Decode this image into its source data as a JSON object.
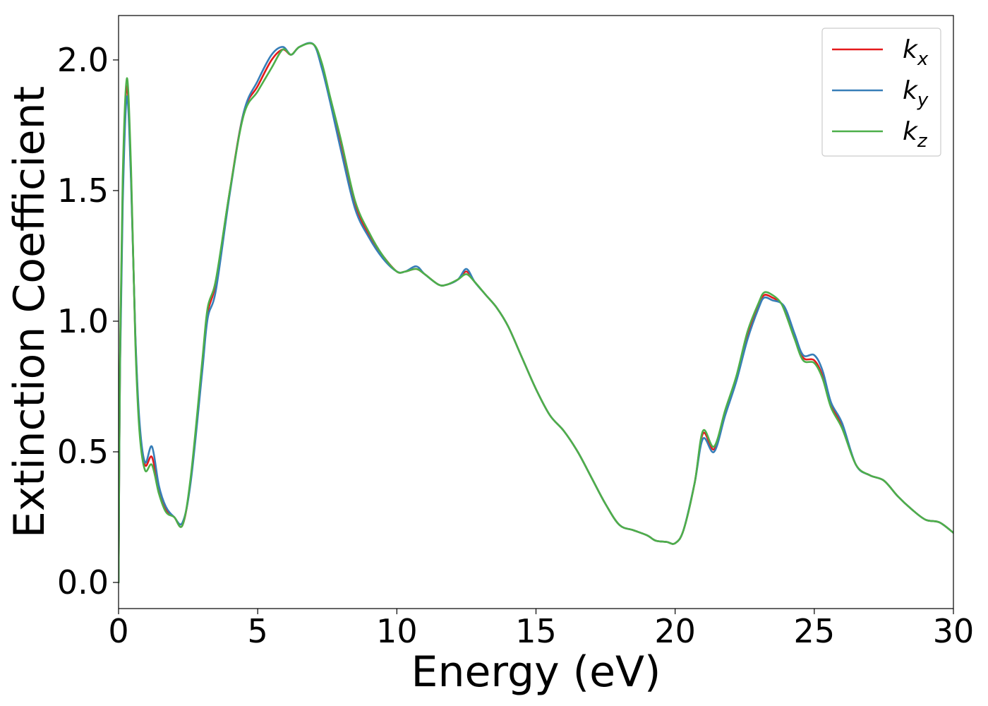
{
  "chart_data": {
    "type": "line",
    "title": "",
    "xlabel": "Energy (eV)",
    "ylabel": "Extinction Coefficient",
    "xlim": [
      0,
      30
    ],
    "ylim": [
      -0.1,
      2.17
    ],
    "xticks": [
      0,
      5,
      10,
      15,
      20,
      25,
      30
    ],
    "yticks": [
      0.0,
      0.5,
      1.0,
      1.5,
      2.0
    ],
    "xtick_labels": [
      "0",
      "5",
      "10",
      "15",
      "20",
      "25",
      "30"
    ],
    "ytick_labels": [
      "0.0",
      "0.5",
      "1.0",
      "1.5",
      "2.0"
    ],
    "grid": false,
    "legend_position": "top-right",
    "series": [
      {
        "name": "k_x",
        "label_main": "k",
        "label_sub": "x",
        "color": "#e41a1c",
        "x": [
          0,
          0.05,
          0.15,
          0.3,
          0.45,
          0.6,
          0.75,
          0.95,
          1.2,
          1.45,
          1.7,
          2.0,
          2.3,
          2.6,
          3.0,
          3.2,
          3.5,
          4.0,
          4.5,
          5.0,
          5.5,
          5.9,
          6.2,
          6.5,
          7.0,
          7.3,
          7.6,
          8.0,
          8.5,
          9.0,
          9.5,
          10.0,
          10.3,
          10.7,
          11.0,
          11.5,
          11.8,
          12.2,
          12.5,
          12.8,
          13.2,
          13.6,
          14.0,
          14.5,
          15.0,
          15.5,
          16.0,
          16.5,
          17.0,
          17.5,
          18.0,
          18.5,
          19.0,
          19.3,
          19.7,
          20.0,
          20.3,
          20.7,
          21.0,
          21.4,
          21.8,
          22.2,
          22.6,
          23.0,
          23.2,
          23.5,
          23.8,
          24.0,
          24.3,
          24.6,
          25.0,
          25.3,
          25.6,
          26.0,
          26.5,
          27.0,
          27.5,
          28.0,
          28.5,
          29.0,
          29.5,
          30.0
        ],
        "values": [
          0.0,
          0.8,
          1.5,
          1.9,
          1.55,
          0.95,
          0.6,
          0.45,
          0.48,
          0.35,
          0.28,
          0.25,
          0.22,
          0.4,
          0.82,
          1.03,
          1.15,
          1.5,
          1.8,
          1.9,
          2.0,
          2.04,
          2.02,
          2.05,
          2.06,
          1.98,
          1.85,
          1.68,
          1.45,
          1.33,
          1.25,
          1.19,
          1.19,
          1.2,
          1.18,
          1.14,
          1.14,
          1.16,
          1.19,
          1.15,
          1.1,
          1.05,
          0.98,
          0.86,
          0.74,
          0.64,
          0.58,
          0.5,
          0.4,
          0.3,
          0.22,
          0.2,
          0.18,
          0.16,
          0.155,
          0.15,
          0.2,
          0.38,
          0.57,
          0.51,
          0.65,
          0.78,
          0.95,
          1.06,
          1.1,
          1.09,
          1.07,
          1.03,
          0.94,
          0.86,
          0.85,
          0.79,
          0.68,
          0.6,
          0.45,
          0.41,
          0.39,
          0.33,
          0.28,
          0.24,
          0.23,
          0.19
        ]
      },
      {
        "name": "k_y",
        "label_main": "k",
        "label_sub": "y",
        "color": "#377eb8",
        "x": [
          0,
          0.05,
          0.15,
          0.3,
          0.45,
          0.6,
          0.75,
          0.95,
          1.2,
          1.45,
          1.7,
          2.0,
          2.3,
          2.6,
          3.0,
          3.2,
          3.5,
          4.0,
          4.5,
          5.0,
          5.5,
          5.9,
          6.2,
          6.5,
          7.0,
          7.3,
          7.6,
          8.0,
          8.5,
          9.0,
          9.5,
          10.0,
          10.3,
          10.7,
          11.0,
          11.5,
          11.8,
          12.2,
          12.5,
          12.8,
          13.2,
          13.6,
          14.0,
          14.5,
          15.0,
          15.5,
          16.0,
          16.5,
          17.0,
          17.5,
          18.0,
          18.5,
          19.0,
          19.3,
          19.7,
          20.0,
          20.3,
          20.7,
          21.0,
          21.4,
          21.8,
          22.2,
          22.6,
          23.0,
          23.2,
          23.5,
          23.8,
          24.0,
          24.3,
          24.6,
          25.0,
          25.3,
          25.6,
          26.0,
          26.5,
          27.0,
          27.5,
          28.0,
          28.5,
          29.0,
          29.5,
          30.0
        ],
        "values": [
          0.0,
          0.78,
          1.45,
          1.86,
          1.53,
          0.96,
          0.62,
          0.46,
          0.52,
          0.37,
          0.29,
          0.25,
          0.23,
          0.39,
          0.8,
          1.01,
          1.12,
          1.49,
          1.8,
          1.92,
          2.02,
          2.05,
          2.02,
          2.05,
          2.06,
          1.97,
          1.84,
          1.65,
          1.43,
          1.32,
          1.24,
          1.19,
          1.19,
          1.21,
          1.18,
          1.14,
          1.14,
          1.16,
          1.2,
          1.15,
          1.1,
          1.05,
          0.98,
          0.86,
          0.74,
          0.64,
          0.58,
          0.5,
          0.4,
          0.3,
          0.22,
          0.2,
          0.18,
          0.16,
          0.155,
          0.15,
          0.2,
          0.38,
          0.55,
          0.5,
          0.64,
          0.77,
          0.93,
          1.05,
          1.09,
          1.08,
          1.07,
          1.04,
          0.95,
          0.87,
          0.87,
          0.81,
          0.69,
          0.61,
          0.45,
          0.41,
          0.39,
          0.33,
          0.28,
          0.24,
          0.23,
          0.19
        ]
      },
      {
        "name": "k_z",
        "label_main": "k",
        "label_sub": "z",
        "color": "#4daf4a",
        "x": [
          0,
          0.05,
          0.15,
          0.3,
          0.45,
          0.6,
          0.75,
          0.95,
          1.2,
          1.45,
          1.7,
          2.0,
          2.3,
          2.6,
          3.0,
          3.2,
          3.5,
          4.0,
          4.5,
          5.0,
          5.5,
          5.9,
          6.2,
          6.5,
          7.0,
          7.3,
          7.6,
          8.0,
          8.5,
          9.0,
          9.5,
          10.0,
          10.3,
          10.7,
          11.0,
          11.5,
          11.8,
          12.2,
          12.5,
          12.8,
          13.2,
          13.6,
          14.0,
          14.5,
          15.0,
          15.5,
          16.0,
          16.5,
          17.0,
          17.5,
          18.0,
          18.5,
          19.0,
          19.3,
          19.7,
          20.0,
          20.3,
          20.7,
          21.0,
          21.4,
          21.8,
          22.2,
          22.6,
          23.0,
          23.2,
          23.5,
          23.8,
          24.0,
          24.3,
          24.6,
          25.0,
          25.3,
          25.6,
          26.0,
          26.5,
          27.0,
          27.5,
          28.0,
          28.5,
          29.0,
          29.5,
          30.0
        ],
        "values": [
          0.0,
          0.82,
          1.55,
          1.93,
          1.58,
          0.93,
          0.58,
          0.43,
          0.45,
          0.34,
          0.27,
          0.25,
          0.22,
          0.41,
          0.84,
          1.05,
          1.16,
          1.5,
          1.79,
          1.88,
          1.97,
          2.04,
          2.02,
          2.05,
          2.06,
          1.99,
          1.86,
          1.69,
          1.46,
          1.34,
          1.25,
          1.19,
          1.19,
          1.2,
          1.18,
          1.14,
          1.14,
          1.16,
          1.18,
          1.15,
          1.1,
          1.05,
          0.98,
          0.86,
          0.74,
          0.64,
          0.58,
          0.5,
          0.4,
          0.3,
          0.22,
          0.2,
          0.18,
          0.16,
          0.155,
          0.15,
          0.2,
          0.38,
          0.58,
          0.52,
          0.66,
          0.79,
          0.96,
          1.07,
          1.11,
          1.1,
          1.07,
          1.02,
          0.93,
          0.85,
          0.84,
          0.78,
          0.67,
          0.59,
          0.45,
          0.41,
          0.39,
          0.33,
          0.28,
          0.24,
          0.23,
          0.19
        ]
      }
    ]
  }
}
